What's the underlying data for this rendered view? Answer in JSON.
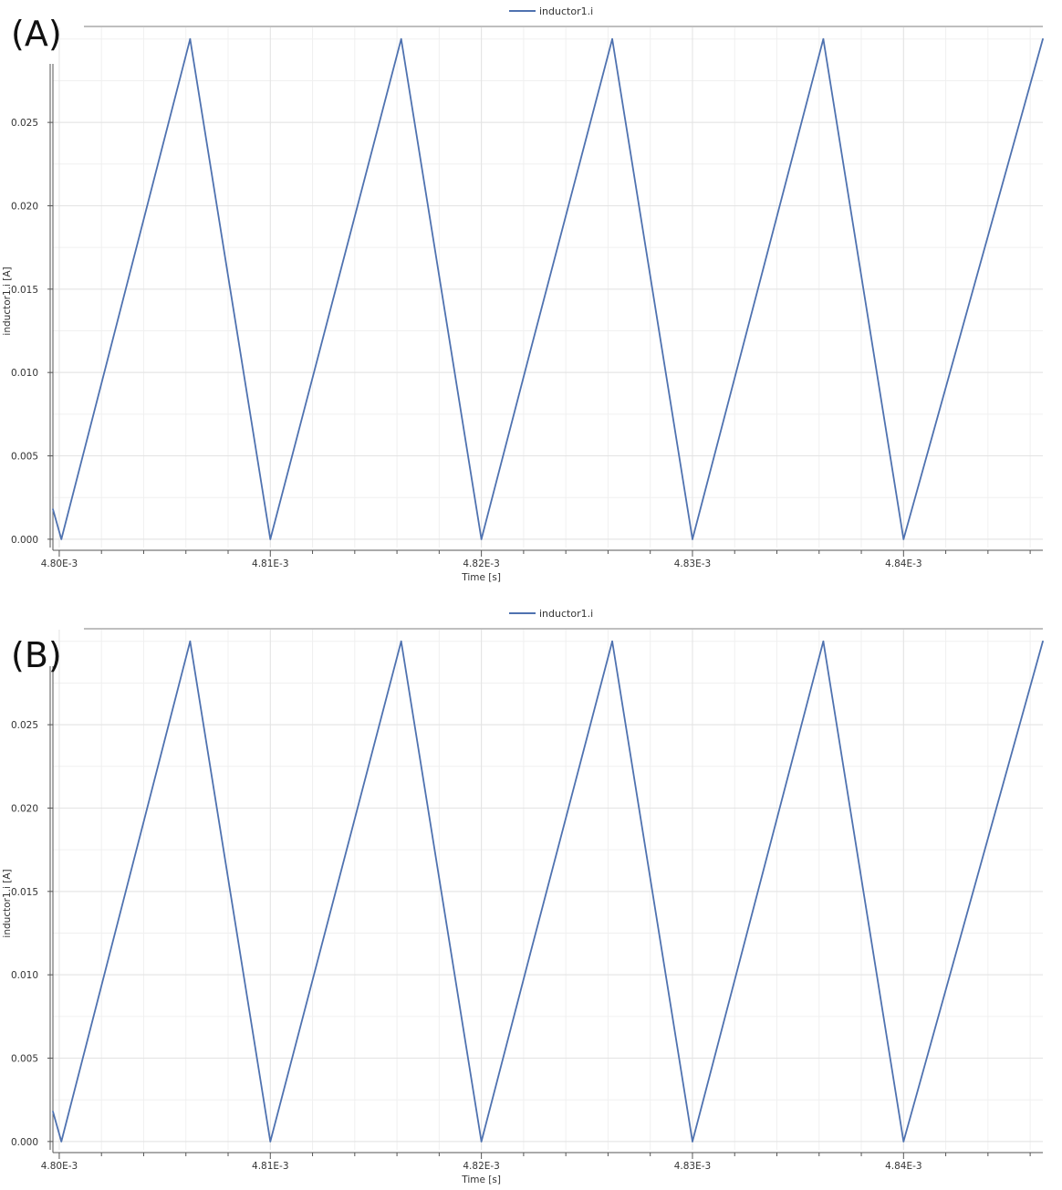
{
  "colors": {
    "series": "#4f72b0",
    "grid_major": "#e3e3e3",
    "grid_minor": "#f0f0f0",
    "axis": "#555555",
    "frame_top": "#999999"
  },
  "chart_data": [
    {
      "type": "line",
      "panel_label": "(A)",
      "xlabel": "Time [s]",
      "ylabel": "inductor1.i [A]",
      "xlim": [
        0.0047997,
        0.0048466
      ],
      "ylim": [
        -0.0005,
        0.0307
      ],
      "x_ticks": [
        0.0048,
        0.00481,
        0.00482,
        0.00483,
        0.00484
      ],
      "x_tick_labels": [
        "4.80E-3",
        "4.81E-3",
        "4.82E-3",
        "4.83E-3",
        "4.84E-3"
      ],
      "y_ticks": [
        0.0,
        0.005,
        0.01,
        0.015,
        0.02,
        0.025
      ],
      "y_tick_labels": [
        "0.000",
        "0.005",
        "0.010",
        "0.015",
        "0.020",
        "0.025"
      ],
      "grid": true,
      "legend_position": "top-center",
      "series": [
        {
          "name": "inductor1.i",
          "x": [
            0.0047997,
            0.0048001,
            0.0048062,
            0.00481,
            0.0048162,
            0.00482,
            0.0048223,
            0.0048262,
            0.00483,
            0.0048362,
            0.00484,
            0.0048466
          ],
          "y": [
            0.0018,
            0.0,
            0.03,
            0.0,
            0.03,
            0.0,
            0.0112,
            0.03,
            0.0,
            0.03,
            0.0,
            0.03
          ]
        }
      ]
    },
    {
      "type": "line",
      "panel_label": "(B)",
      "xlabel": "Time [s]",
      "ylabel": "inductor1.i [A]",
      "xlim": [
        0.0047997,
        0.0048466
      ],
      "ylim": [
        -0.0005,
        0.0307
      ],
      "x_ticks": [
        0.0048,
        0.00481,
        0.00482,
        0.00483,
        0.00484
      ],
      "x_tick_labels": [
        "4.80E-3",
        "4.81E-3",
        "4.82E-3",
        "4.83E-3",
        "4.84E-3"
      ],
      "y_ticks": [
        0.0,
        0.005,
        0.01,
        0.015,
        0.02,
        0.025
      ],
      "y_tick_labels": [
        "0.000",
        "0.005",
        "0.010",
        "0.015",
        "0.020",
        "0.025"
      ],
      "grid": true,
      "legend_position": "top-center",
      "series": [
        {
          "name": "inductor1.i",
          "x": [
            0.0047997,
            0.0048001,
            0.0048062,
            0.00481,
            0.0048162,
            0.00482,
            0.0048223,
            0.0048262,
            0.00483,
            0.0048362,
            0.00484,
            0.0048466
          ],
          "y": [
            0.0018,
            0.0,
            0.03,
            0.0,
            0.03,
            0.0,
            0.0112,
            0.03,
            0.0,
            0.03,
            0.0,
            0.03
          ]
        }
      ]
    }
  ]
}
